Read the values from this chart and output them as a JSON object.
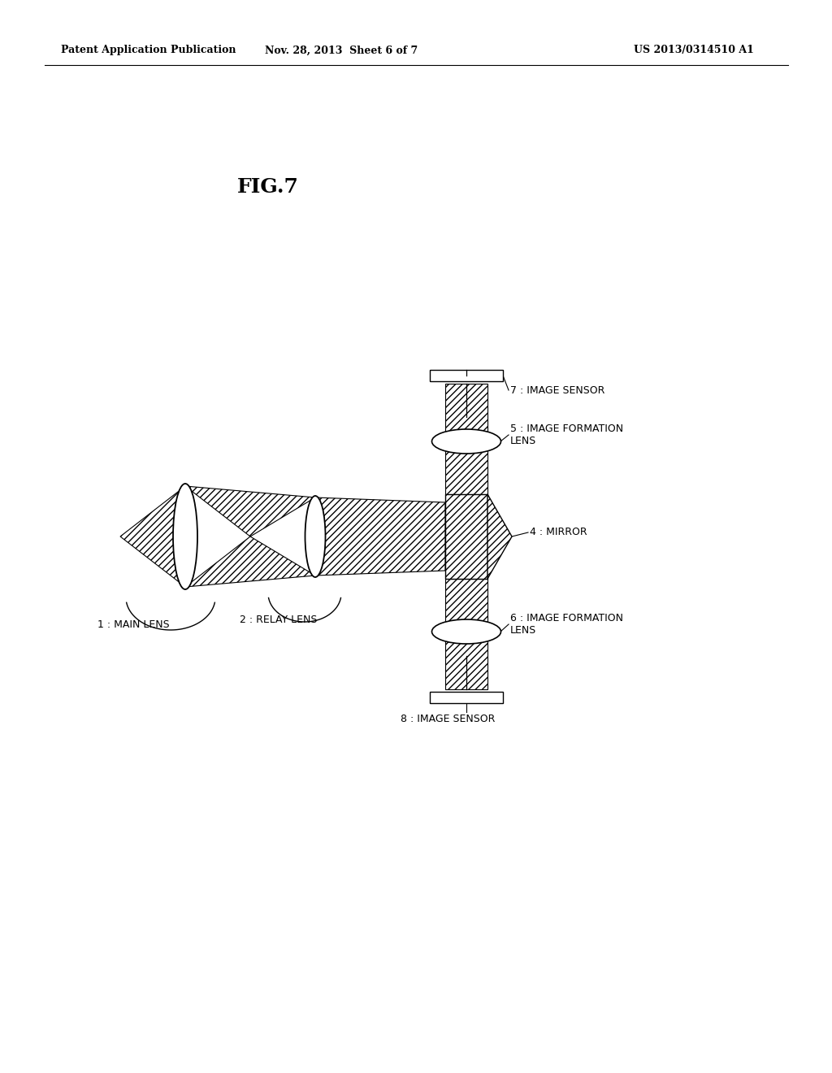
{
  "background_color": "#ffffff",
  "header_left": "Patent Application Publication",
  "header_mid": "Nov. 28, 2013  Sheet 6 of 7",
  "header_right": "US 2013/0314510 A1",
  "fig_label": "FIG.7",
  "labels": {
    "1": "1 : MAIN LENS",
    "2": "2 : RELAY LENS",
    "4": "4 : MIRROR",
    "5": "5 : IMAGE FORMATION\nLENS",
    "6": "6 : IMAGE FORMATION\nLENS",
    "7": "7 : IMAGE SENSOR",
    "8": "8 : IMAGE SENSOR"
  },
  "line_color": "#000000",
  "background_color2": "#ffffff"
}
